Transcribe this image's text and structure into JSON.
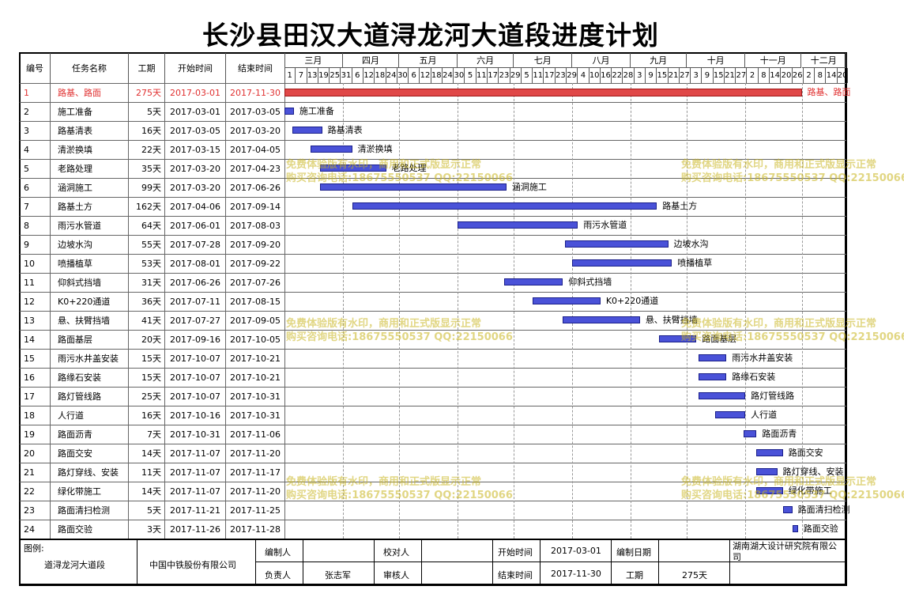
{
  "title": "长沙县田汉大道浔龙河大道段进度计划",
  "headers": {
    "id": "编号",
    "name": "任务名称",
    "duration": "工期",
    "start": "开始时间",
    "end": "结束时间"
  },
  "months": [
    "三月",
    "四月",
    "五月",
    "六月",
    "七月",
    "八月",
    "九月",
    "十月",
    "十一月",
    "十二月"
  ],
  "day_ticks": [
    "1",
    "7",
    "13",
    "19",
    "25",
    "31",
    "6",
    "12",
    "18",
    "24",
    "30",
    "6",
    "12",
    "18",
    "24",
    "30",
    "5",
    "11",
    "17",
    "23",
    "29",
    "5",
    "11",
    "17",
    "23",
    "29",
    "4",
    "10",
    "16",
    "22",
    "28",
    "3",
    "9",
    "15",
    "21",
    "27",
    "3",
    "9",
    "15",
    "21",
    "27",
    "2",
    "8",
    "14",
    "20",
    "26",
    "2",
    "8",
    "14",
    "20"
  ],
  "tasks": [
    {
      "id": "1",
      "name": "路基、路面",
      "duration": "275天",
      "start": "2017-03-01",
      "end": "2017-11-30",
      "critical": true
    },
    {
      "id": "2",
      "name": "施工准备",
      "duration": "5天",
      "start": "2017-03-01",
      "end": "2017-03-05"
    },
    {
      "id": "3",
      "name": "路基清表",
      "duration": "16天",
      "start": "2017-03-05",
      "end": "2017-03-20"
    },
    {
      "id": "4",
      "name": "清淤换填",
      "duration": "22天",
      "start": "2017-03-15",
      "end": "2017-04-05"
    },
    {
      "id": "5",
      "name": "老路处理",
      "duration": "35天",
      "start": "2017-03-20",
      "end": "2017-04-23"
    },
    {
      "id": "6",
      "name": "涵洞施工",
      "duration": "99天",
      "start": "2017-03-20",
      "end": "2017-06-26"
    },
    {
      "id": "7",
      "name": "路基土方",
      "duration": "162天",
      "start": "2017-04-06",
      "end": "2017-09-14"
    },
    {
      "id": "8",
      "name": "雨污水管道",
      "duration": "64天",
      "start": "2017-06-01",
      "end": "2017-08-03"
    },
    {
      "id": "9",
      "name": "边坡水沟",
      "duration": "55天",
      "start": "2017-07-28",
      "end": "2017-09-20"
    },
    {
      "id": "10",
      "name": "喷播植草",
      "duration": "53天",
      "start": "2017-08-01",
      "end": "2017-09-22"
    },
    {
      "id": "11",
      "name": "仰斜式挡墙",
      "duration": "31天",
      "start": "2017-06-26",
      "end": "2017-07-26"
    },
    {
      "id": "12",
      "name": "K0+220通道",
      "duration": "36天",
      "start": "2017-07-11",
      "end": "2017-08-15"
    },
    {
      "id": "13",
      "name": "悬、扶臂挡墙",
      "duration": "41天",
      "start": "2017-07-27",
      "end": "2017-09-05"
    },
    {
      "id": "14",
      "name": "路面基层",
      "duration": "20天",
      "start": "2017-09-16",
      "end": "2017-10-05"
    },
    {
      "id": "15",
      "name": "雨污水井盖安装",
      "duration": "15天",
      "start": "2017-10-07",
      "end": "2017-10-21"
    },
    {
      "id": "16",
      "name": "路缘石安装",
      "duration": "15天",
      "start": "2017-10-07",
      "end": "2017-10-21"
    },
    {
      "id": "17",
      "name": "路灯管线路",
      "duration": "25天",
      "start": "2017-10-07",
      "end": "2017-10-31"
    },
    {
      "id": "18",
      "name": "人行道",
      "duration": "16天",
      "start": "2017-10-16",
      "end": "2017-10-31"
    },
    {
      "id": "19",
      "name": "路面沥青",
      "duration": "7天",
      "start": "2017-10-31",
      "end": "2017-11-06"
    },
    {
      "id": "20",
      "name": "路面交安",
      "duration": "14天",
      "start": "2017-11-07",
      "end": "2017-11-20"
    },
    {
      "id": "21",
      "name": "路灯穿线、安装",
      "duration": "11天",
      "start": "2017-11-07",
      "end": "2017-11-17"
    },
    {
      "id": "22",
      "name": "绿化带施工",
      "duration": "14天",
      "start": "2017-11-07",
      "end": "2017-11-20"
    },
    {
      "id": "23",
      "name": "路面清扫检测",
      "duration": "5天",
      "start": "2017-11-21",
      "end": "2017-11-25"
    },
    {
      "id": "24",
      "name": "路面交验",
      "duration": "3天",
      "start": "2017-11-26",
      "end": "2017-11-28"
    }
  ],
  "watermark": {
    "line1": "免费体验版有水印，商用和正式版显示正常",
    "line2": "购买咨询电话:18675550537 QQ:22150066"
  },
  "footer": {
    "legend_label": "图例:",
    "project": "道浔龙河大道段",
    "company": "中国中铁股份有限公司",
    "compiler_label": "编制人",
    "compiler": "",
    "checker_label": "校对人",
    "checker": "",
    "start_label": "开始时间",
    "start": "2017-03-01",
    "compile_date_label": "编制日期",
    "compile_date": "",
    "institute": "湖南湖大设计研究院有限公司",
    "owner_label": "负责人",
    "owner": "张志军",
    "reviewer_label": "审核人",
    "reviewer": "",
    "end_label": "结束时间",
    "end": "2017-11-30",
    "duration_label": "工期",
    "duration": "275天"
  }
}
